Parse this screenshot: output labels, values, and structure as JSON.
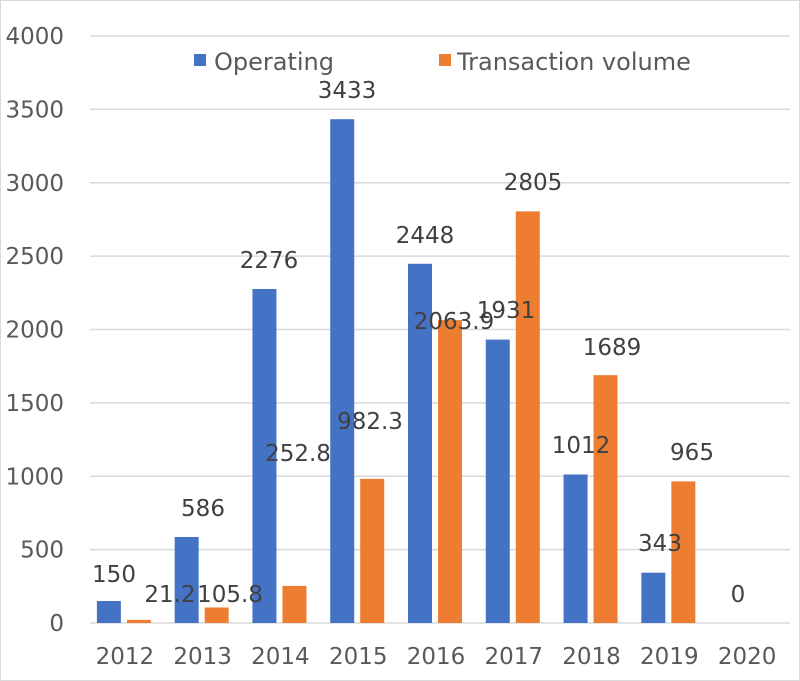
{
  "chart_data": {
    "type": "bar",
    "title": "",
    "xlabel": "",
    "ylabel": "",
    "categories": [
      "2012",
      "2013",
      "2014",
      "2015",
      "2016",
      "2017",
      "2018",
      "2019",
      "2020"
    ],
    "series": [
      {
        "name": "Operating",
        "color": "#4472c4",
        "values": [
          150,
          586,
          2276,
          3433,
          2448,
          1931,
          1012,
          343,
          null
        ],
        "labels": [
          "150",
          "586",
          "2276",
          "3433",
          "2448",
          "1931",
          "1012",
          "343",
          "0"
        ]
      },
      {
        "name": "Transaction volume",
        "color": "#ed7d31",
        "values": [
          21.2,
          105.8,
          252.8,
          982.3,
          2063.9,
          2805,
          1689,
          965,
          null
        ],
        "labels": [
          "21.2",
          "105.8",
          "252.8",
          "982.3",
          "2063.9",
          "2805",
          "1689",
          "965",
          ""
        ]
      }
    ],
    "ylim": [
      0,
      4000
    ],
    "yticks": [
      0,
      500,
      1000,
      1500,
      2000,
      2500,
      3000,
      3500,
      4000
    ],
    "ytick_labels": [
      "0",
      "500",
      "1000",
      "1500",
      "2000",
      "2500",
      "3000",
      "3500",
      "4000"
    ],
    "grid": true,
    "legend_position": "top"
  }
}
